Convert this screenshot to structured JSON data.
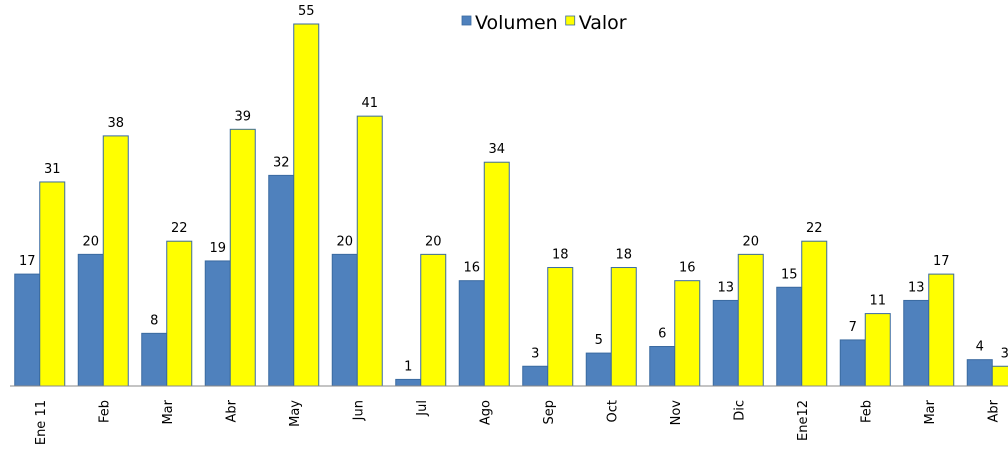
{
  "chart_data": {
    "type": "bar",
    "categories": [
      "Ene 11",
      "Feb",
      "Mar",
      "Abr",
      "May",
      "Jun",
      "Jul",
      "Ago",
      "Sep",
      "Oct",
      "Nov",
      "Dic",
      "Ene12",
      "Feb",
      "Mar",
      "Abr"
    ],
    "series": [
      {
        "name": "Volumen",
        "color": "#4f81bd",
        "values": [
          17,
          20,
          8,
          19,
          32,
          20,
          1,
          16,
          3,
          5,
          6,
          13,
          15,
          7,
          13,
          4
        ]
      },
      {
        "name": "Valor",
        "color": "#ffff00",
        "values": [
          31,
          38,
          22,
          39,
          55,
          41,
          20,
          34,
          18,
          18,
          16,
          20,
          22,
          11,
          17,
          3
        ]
      }
    ],
    "legend": "top"
  }
}
